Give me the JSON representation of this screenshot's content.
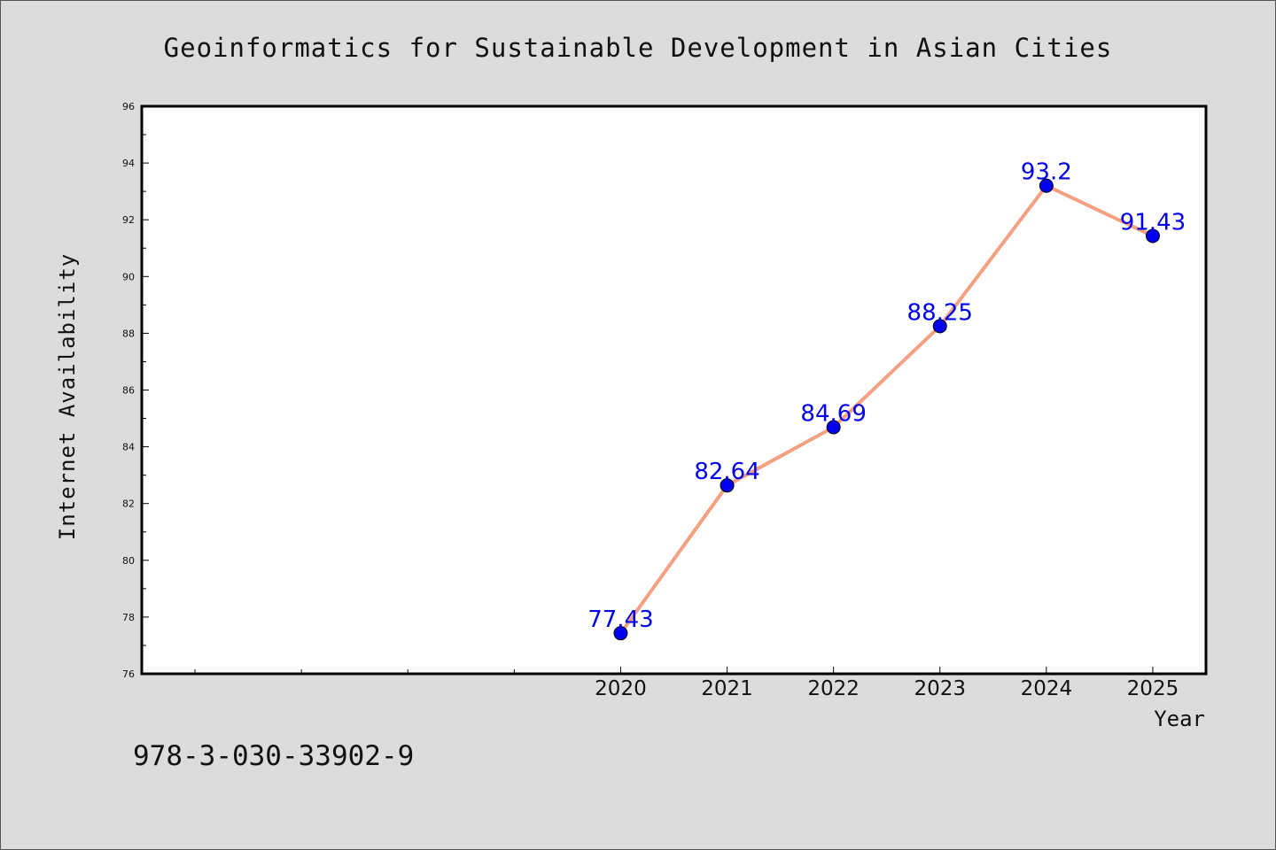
{
  "chart_data": {
    "type": "line",
    "title": "Geoinformatics for Sustainable Development in Asian Cities",
    "xlabel": "Year",
    "ylabel": "Internet Availability",
    "x": [
      2020,
      2021,
      2022,
      2023,
      2024,
      2025
    ],
    "x_tick_labels": [
      "2020",
      "2021",
      "2022",
      "2023",
      "2024",
      "2025"
    ],
    "xlim": [
      2015.5,
      2025.5
    ],
    "ylim": [
      76,
      96
    ],
    "y_ticks": [
      76,
      78,
      80,
      82,
      84,
      86,
      88,
      90,
      92,
      94,
      96
    ],
    "series": [
      {
        "values": [
          77.43,
          82.64,
          84.69,
          88.25,
          93.2,
          91.43
        ],
        "data_labels": [
          "77.43",
          "82.64",
          "84.69",
          "88.25",
          "93.2",
          "91.43"
        ]
      }
    ],
    "grid": false,
    "line_color": "#f4a081",
    "marker_color": "#0000ee",
    "label_color": "#0000ee",
    "background_color": "#dcdcdc",
    "plot_background": "#ffffff"
  },
  "footer": {
    "isbn": "978-3-030-33902-9"
  }
}
